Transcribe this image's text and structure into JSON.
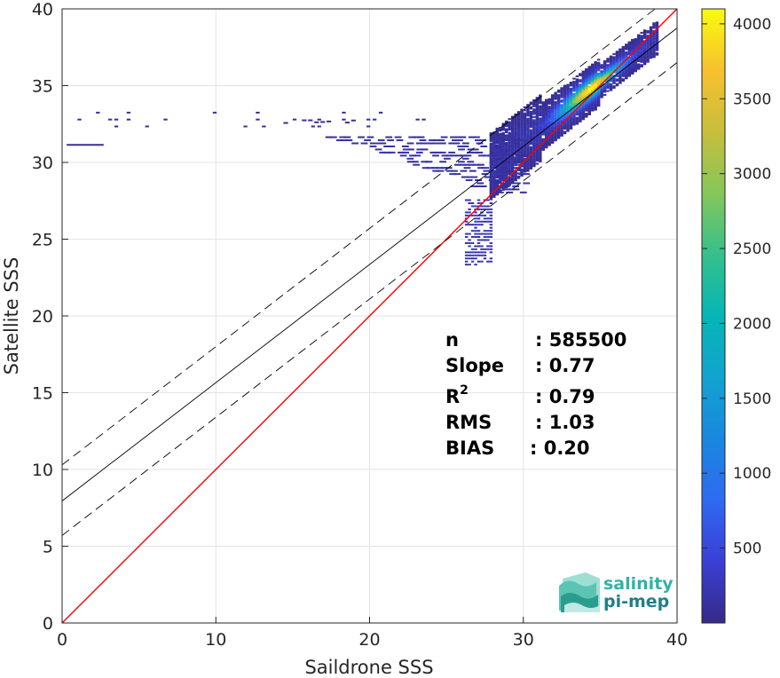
{
  "chart_data": {
    "type": "heatmap",
    "title": "",
    "xlabel": "Saildrone SSS",
    "ylabel": "Satellite SSS",
    "xlim": [
      0,
      40
    ],
    "ylim": [
      0,
      40
    ],
    "x_ticks": [
      "0",
      "10",
      "20",
      "30",
      "40"
    ],
    "y_ticks": [
      "0",
      "5",
      "10",
      "15",
      "20",
      "25",
      "30",
      "35",
      "40"
    ],
    "grid": true,
    "colorbar": {
      "range": [
        0,
        4100
      ],
      "ticks": [
        "500",
        "1000",
        "1500",
        "2000",
        "2500",
        "3000",
        "3500",
        "4000"
      ],
      "colormap": "parula"
    },
    "lines": [
      {
        "name": "1:1 line",
        "intercept": 0,
        "slope": 1,
        "color": "#ff0000",
        "style": "solid"
      },
      {
        "name": "regression",
        "intercept": 7.95,
        "slope": 0.77,
        "color": "#000000",
        "style": "solid"
      },
      {
        "name": "regression + RMS band",
        "intercept": 10.3,
        "slope": 0.77,
        "color": "#000000",
        "style": "dashed"
      },
      {
        "name": "regression - RMS band",
        "intercept": 5.7,
        "slope": 0.77,
        "color": "#000000",
        "style": "dashed"
      }
    ],
    "density_clusters": [
      {
        "x_range": [
          28,
          38.5
        ],
        "y_range": [
          29,
          38
        ],
        "along_line": true,
        "peak": 4000
      },
      {
        "x_range": [
          26.2,
          27.8
        ],
        "y_range": [
          23.2,
          27.5
        ],
        "peak": 400
      },
      {
        "x_range": [
          16,
          30
        ],
        "y_range": [
          27.5,
          31.5
        ],
        "peak": 250
      },
      {
        "x_range": [
          0,
          19
        ],
        "y_range": [
          32.3,
          33.6
        ],
        "peak": 150
      }
    ]
  },
  "stats": {
    "n_label": "n",
    "n_value": ": 585500",
    "slope_label": "Slope",
    "slope_value": ": 0.77",
    "r2_label": "R",
    "r2_sup": "2",
    "r2_value": ": 0.79",
    "rms_label": "RMS",
    "rms_value": ": 1.03",
    "bias_label": "BIAS",
    "bias_value": ": 0.20"
  },
  "logo": {
    "line1": "salinity",
    "line2": "pi-mep",
    "color1": "#2fb3a6",
    "color2": "#1f7f86"
  }
}
